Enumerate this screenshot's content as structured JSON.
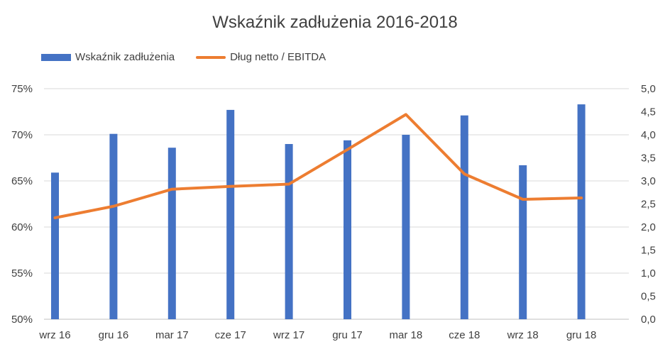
{
  "chart_data": {
    "type": "bar",
    "title": "Wskaźnik zadłużenia 2016-2018",
    "categories": [
      "wrz 16",
      "gru 16",
      "mar 17",
      "cze 17",
      "wrz 17",
      "gru 17",
      "mar 18",
      "cze 18",
      "wrz 18",
      "gru 18"
    ],
    "series": [
      {
        "name": "Wskaźnik zadłużenia",
        "type": "bar",
        "axis": "left",
        "color": "#4472C4",
        "values": [
          65.9,
          70.1,
          68.6,
          72.7,
          69.0,
          69.4,
          70.0,
          72.1,
          66.7,
          73.3
        ]
      },
      {
        "name": "Dług netto / EBITDA",
        "type": "line",
        "axis": "right",
        "color": "#ED7D31",
        "values": [
          2.2,
          2.45,
          2.82,
          2.88,
          2.93,
          3.68,
          4.44,
          3.15,
          2.6,
          2.63
        ]
      }
    ],
    "y_left": {
      "min": 50,
      "max": 75,
      "step": 5,
      "ticks": [
        "50%",
        "55%",
        "60%",
        "65%",
        "70%",
        "75%"
      ]
    },
    "y_right": {
      "min": 0,
      "max": 5,
      "step": 0.5,
      "ticks": [
        "0,0",
        "0,5",
        "1,0",
        "1,5",
        "2,0",
        "2,5",
        "3,0",
        "3,5",
        "4,0",
        "4,5",
        "5,0"
      ]
    },
    "grid": true,
    "legend_position": "top-left"
  }
}
